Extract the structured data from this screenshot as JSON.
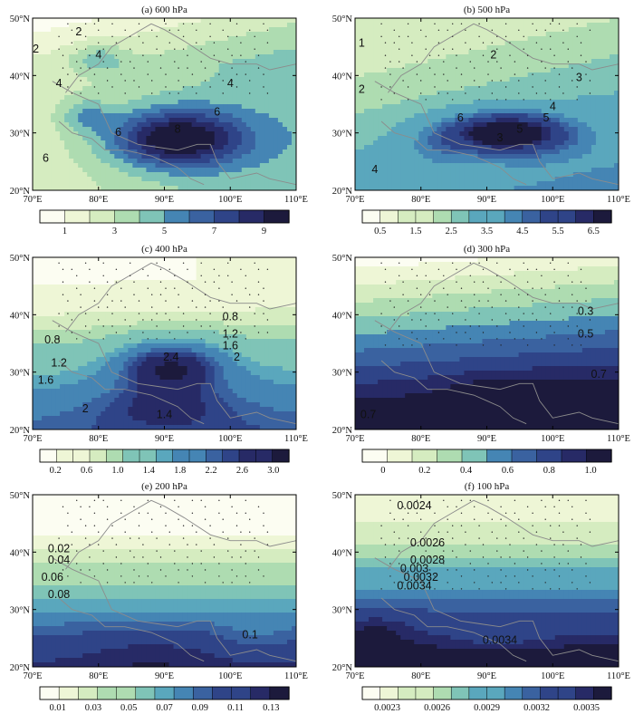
{
  "figure": {
    "colors": [
      "#fcfdf2",
      "#eef6d6",
      "#d5ecc0",
      "#aedcb1",
      "#7fc4b7",
      "#5aa7bd",
      "#4585b4",
      "#3a62a0",
      "#2f4488",
      "#272a66",
      "#1c1a3c"
    ]
  },
  "chart_data": [
    {
      "type": "heatmap",
      "title": "(a) 600 hPa",
      "x_ticks": [
        "70°E",
        "80°E",
        "90°E",
        "100°E",
        "110°E"
      ],
      "y_ticks": [
        "20°N",
        "30°N",
        "40°N",
        "50°N"
      ],
      "xlim": [
        70,
        110
      ],
      "ylim": [
        20,
        50
      ],
      "colorbar_labels": [
        "1",
        "3",
        "5",
        "7",
        "9"
      ],
      "levels": [
        0,
        1,
        2,
        3,
        4,
        5,
        6,
        7,
        8,
        9,
        10
      ],
      "contour_labels": [
        "2",
        "2",
        "4",
        "4",
        "6",
        "4",
        "6",
        "8",
        "6"
      ]
    },
    {
      "type": "heatmap",
      "title": "(b) 500 hPa",
      "x_ticks": [
        "70°E",
        "80°E",
        "90°E",
        "100°E",
        "110°E"
      ],
      "y_ticks": [
        "20°N",
        "30°N",
        "40°N",
        "50°N"
      ],
      "xlim": [
        70,
        110
      ],
      "ylim": [
        20,
        50
      ],
      "colorbar_labels": [
        "0.5",
        "1.5",
        "2.5",
        "3.5",
        "4.5",
        "5.5",
        "6.5"
      ],
      "levels": [
        0,
        0.5,
        1,
        1.5,
        2,
        2.5,
        3,
        3.5,
        4,
        4.5,
        5,
        5.5,
        6,
        6.5,
        7
      ],
      "contour_labels": [
        "1",
        "2",
        "2",
        "3",
        "4",
        "5",
        "6",
        "5",
        "3",
        "4"
      ]
    },
    {
      "type": "heatmap",
      "title": "(c) 400 hPa",
      "x_ticks": [
        "70°E",
        "80°E",
        "90°E",
        "100°E",
        "110°E"
      ],
      "y_ticks": [
        "20°N",
        "30°N",
        "40°N",
        "50°N"
      ],
      "xlim": [
        70,
        110
      ],
      "ylim": [
        20,
        50
      ],
      "colorbar_labels": [
        "0.2",
        "0.6",
        "1.0",
        "1.4",
        "1.8",
        "2.2",
        "2.6",
        "3.0"
      ],
      "levels": [
        0,
        0.2,
        0.4,
        0.6,
        0.8,
        1.0,
        1.2,
        1.4,
        1.6,
        1.8,
        2.0,
        2.2,
        2.4,
        2.6,
        2.8,
        3.0
      ],
      "contour_labels": [
        "0.8",
        "1.2",
        "1.6",
        "2",
        "2.4",
        "0.8",
        "1.2",
        "1.6",
        "2",
        "1.4"
      ]
    },
    {
      "type": "heatmap",
      "title": "(d) 300 hPa",
      "x_ticks": [
        "70°E",
        "80°E",
        "90°E",
        "100°E",
        "110°E"
      ],
      "y_ticks": [
        "20°N",
        "30°N",
        "40°N",
        "50°N"
      ],
      "xlim": [
        70,
        110
      ],
      "ylim": [
        20,
        50
      ],
      "colorbar_labels": [
        "0",
        "0.2",
        "0.4",
        "0.6",
        "0.8",
        "1.0"
      ],
      "levels": [
        0,
        0.1,
        0.2,
        0.3,
        0.4,
        0.5,
        0.6,
        0.7,
        0.8,
        0.9,
        1.0
      ],
      "contour_labels": [
        "0.3",
        "0.5",
        "0.7",
        "0.7"
      ]
    },
    {
      "type": "heatmap",
      "title": "(e) 200 hPa",
      "x_ticks": [
        "70°E",
        "80°E",
        "90°E",
        "100°E",
        "110°E"
      ],
      "y_ticks": [
        "20°N",
        "30°N",
        "40°N",
        "50°N"
      ],
      "xlim": [
        70,
        110
      ],
      "ylim": [
        20,
        50
      ],
      "colorbar_labels": [
        "0.01",
        "0.03",
        "0.05",
        "0.07",
        "0.09",
        "0.11",
        "0.13"
      ],
      "levels": [
        0,
        0.01,
        0.02,
        0.03,
        0.04,
        0.05,
        0.06,
        0.07,
        0.08,
        0.09,
        0.1,
        0.11,
        0.12,
        0.13
      ],
      "contour_labels": [
        "0.02",
        "0.04",
        "0.06",
        "0.08",
        "0.1"
      ]
    },
    {
      "type": "heatmap",
      "title": "(f) 100 hPa",
      "x_ticks": [
        "70°E",
        "80°E",
        "90°E",
        "100°E",
        "110°E"
      ],
      "y_ticks": [
        "20°N",
        "30°N",
        "40°N",
        "50°N"
      ],
      "xlim": [
        70,
        110
      ],
      "ylim": [
        20,
        50
      ],
      "colorbar_labels": [
        "0.0023",
        "0.0026",
        "0.0029",
        "0.0032",
        "0.0035"
      ],
      "levels": [
        0.0022,
        0.0023,
        0.0024,
        0.0025,
        0.0026,
        0.0027,
        0.0028,
        0.0029,
        0.003,
        0.0031,
        0.0032,
        0.0033,
        0.0034,
        0.0035,
        0.0036
      ],
      "contour_labels": [
        "0.0024",
        "0.0026",
        "0.0028",
        "0.003",
        "0.0032",
        "0.0034",
        "0.0034"
      ]
    }
  ]
}
